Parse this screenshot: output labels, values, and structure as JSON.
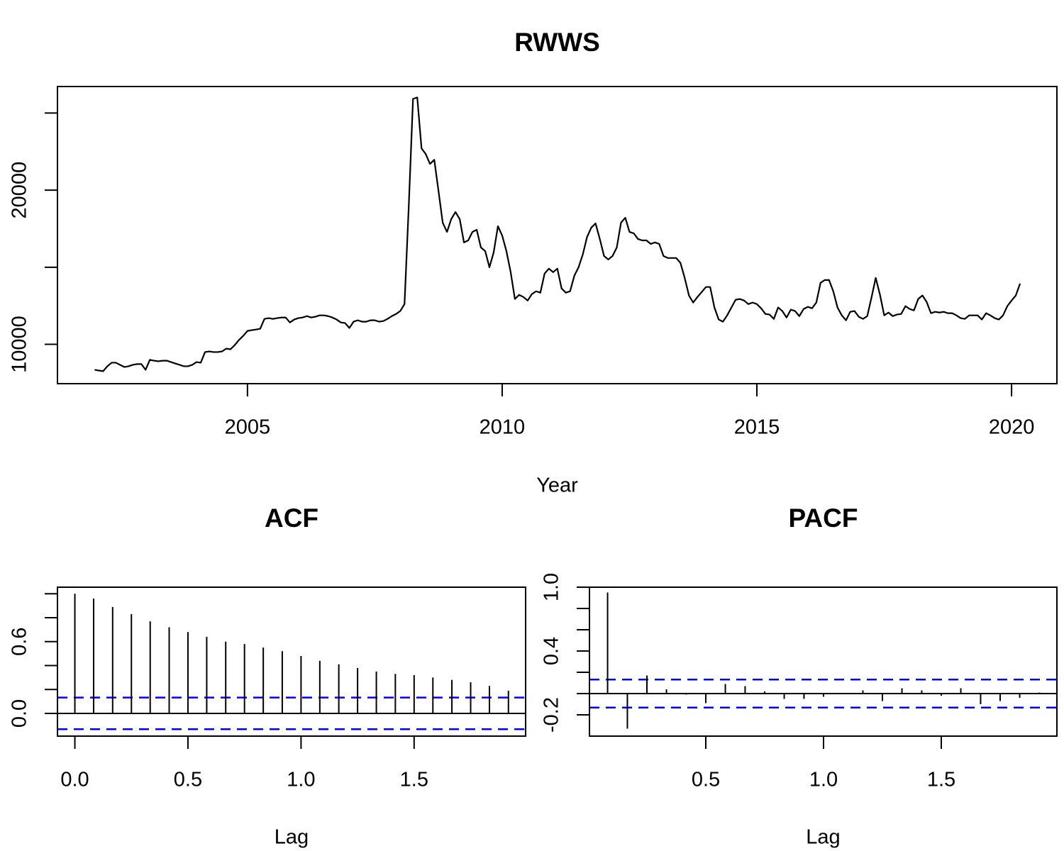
{
  "chart_data": [
    {
      "type": "line",
      "title": "RWWS",
      "xlabel": "Year",
      "color": "#000000",
      "x": [
        2002,
        2002.083,
        2002.167,
        2002.25,
        2002.333,
        2002.417,
        2002.5,
        2002.583,
        2002.667,
        2002.75,
        2002.833,
        2002.917,
        2003,
        2003.083,
        2003.167,
        2003.25,
        2003.333,
        2003.417,
        2003.5,
        2003.583,
        2003.667,
        2003.75,
        2003.833,
        2003.917,
        2004,
        2004.083,
        2004.167,
        2004.25,
        2004.333,
        2004.417,
        2004.5,
        2004.583,
        2004.667,
        2004.75,
        2004.833,
        2004.917,
        2005,
        2005.083,
        2005.167,
        2005.25,
        2005.333,
        2005.417,
        2005.5,
        2005.583,
        2005.667,
        2005.75,
        2005.833,
        2005.917,
        2006,
        2006.083,
        2006.167,
        2006.25,
        2006.333,
        2006.417,
        2006.5,
        2006.583,
        2006.667,
        2006.75,
        2006.833,
        2006.917,
        2007,
        2007.083,
        2007.167,
        2007.25,
        2007.333,
        2007.417,
        2007.5,
        2007.583,
        2007.667,
        2007.75,
        2007.833,
        2007.917,
        2008,
        2008.083,
        2008.167,
        2008.25,
        2008.333,
        2008.417,
        2008.5,
        2008.583,
        2008.667,
        2008.75,
        2008.833,
        2008.917,
        2009,
        2009.083,
        2009.167,
        2009.25,
        2009.333,
        2009.417,
        2009.5,
        2009.583,
        2009.667,
        2009.75,
        2009.833,
        2009.917,
        2010,
        2010.083,
        2010.167,
        2010.25,
        2010.333,
        2010.417,
        2010.5,
        2010.583,
        2010.667,
        2010.75,
        2010.833,
        2010.917,
        2011,
        2011.083,
        2011.167,
        2011.25,
        2011.333,
        2011.417,
        2011.5,
        2011.583,
        2011.667,
        2011.75,
        2011.833,
        2011.917,
        2012,
        2012.083,
        2012.167,
        2012.25,
        2012.333,
        2012.417,
        2012.5,
        2012.583,
        2012.667,
        2012.75,
        2012.833,
        2012.917,
        2013,
        2013.083,
        2013.167,
        2013.25,
        2013.333,
        2013.417,
        2013.5,
        2013.583,
        2013.667,
        2013.75,
        2013.833,
        2013.917,
        2014,
        2014.083,
        2014.167,
        2014.25,
        2014.333,
        2014.417,
        2014.5,
        2014.583,
        2014.667,
        2014.75,
        2014.833,
        2014.917,
        2015,
        2015.083,
        2015.167,
        2015.25,
        2015.333,
        2015.417,
        2015.5,
        2015.583,
        2015.667,
        2015.75,
        2015.833,
        2015.917,
        2016,
        2016.083,
        2016.167,
        2016.25,
        2016.333,
        2016.417,
        2016.5,
        2016.583,
        2016.667,
        2016.75,
        2016.833,
        2016.917,
        2017,
        2017.083,
        2017.167,
        2017.25,
        2017.333,
        2017.417,
        2017.5,
        2017.583,
        2017.667,
        2017.75,
        2017.833,
        2017.917,
        2018,
        2018.083,
        2018.167,
        2018.25,
        2018.333,
        2018.417,
        2018.5,
        2018.583,
        2018.667,
        2018.75,
        2018.833,
        2018.917,
        2019,
        2019.083,
        2019.167,
        2019.25,
        2019.333,
        2019.417,
        2019.5,
        2019.583,
        2019.667,
        2019.75,
        2019.833,
        2019.917,
        2020,
        2020.083,
        2020.167
      ],
      "values": [
        8350,
        8300,
        8260,
        8580,
        8810,
        8810,
        8670,
        8530,
        8580,
        8670,
        8720,
        8720,
        8350,
        8990,
        8940,
        8900,
        8940,
        8940,
        8850,
        8760,
        8670,
        8580,
        8580,
        8670,
        8850,
        8810,
        9500,
        9540,
        9500,
        9500,
        9540,
        9720,
        9680,
        9950,
        10280,
        10550,
        10870,
        10920,
        10960,
        11010,
        11650,
        11700,
        11650,
        11700,
        11740,
        11740,
        11420,
        11610,
        11700,
        11740,
        11830,
        11740,
        11790,
        11880,
        11880,
        11830,
        11740,
        11610,
        11420,
        11380,
        11060,
        11470,
        11560,
        11470,
        11470,
        11560,
        11560,
        11470,
        11510,
        11650,
        11830,
        11970,
        12160,
        12610,
        19000,
        25920,
        26010,
        22710,
        22340,
        21700,
        21970,
        19950,
        17890,
        17290,
        18120,
        18580,
        18120,
        16610,
        16740,
        17290,
        17430,
        16280,
        16050,
        15000,
        15960,
        17660,
        17060,
        16050,
        14680,
        12940,
        13210,
        13070,
        12840,
        13260,
        13440,
        13350,
        14590,
        14910,
        14680,
        14910,
        13620,
        13350,
        13440,
        14450,
        15000,
        15830,
        16970,
        17570,
        17840,
        16830,
        15730,
        15500,
        15730,
        16280,
        17890,
        18210,
        17290,
        17200,
        16830,
        16740,
        16740,
        16510,
        16610,
        16510,
        15730,
        15600,
        15600,
        15600,
        15280,
        14310,
        13170,
        12710,
        13070,
        13390,
        13720,
        13720,
        12390,
        11610,
        11470,
        11880,
        12390,
        12890,
        12940,
        12840,
        12610,
        12710,
        12610,
        12340,
        11970,
        11930,
        11650,
        12390,
        12160,
        11740,
        12250,
        12160,
        11830,
        12290,
        12430,
        12340,
        12710,
        13990,
        14170,
        14170,
        13440,
        12390,
        11880,
        11560,
        12110,
        12160,
        11790,
        11650,
        11830,
        13030,
        14310,
        13210,
        11880,
        12060,
        11830,
        11930,
        11970,
        12480,
        12290,
        12200,
        12940,
        13170,
        12750,
        12020,
        12110,
        12060,
        12110,
        12020,
        12020,
        11880,
        11700,
        11650,
        11880,
        11880,
        11880,
        11610,
        12020,
        11880,
        11700,
        11610,
        11880,
        12480,
        12840,
        13170,
        13940
      ],
      "xlim": [
        2001.27,
        2020.89
      ],
      "ylim": [
        7450,
        26720
      ],
      "xticks": [
        2005,
        2010,
        2015,
        2020
      ],
      "yticks": [
        10000,
        20000
      ],
      "yticks_minor": [
        15000,
        25000
      ]
    },
    {
      "type": "stem",
      "title": "ACF",
      "xlabel": "Lag",
      "color": "#000000",
      "x": [
        0,
        0.083,
        0.167,
        0.25,
        0.333,
        0.417,
        0.5,
        0.583,
        0.667,
        0.75,
        0.833,
        0.917,
        1,
        1.083,
        1.167,
        1.25,
        1.333,
        1.417,
        1.5,
        1.583,
        1.667,
        1.75,
        1.833,
        1.917
      ],
      "values": [
        1.0,
        0.96,
        0.89,
        0.83,
        0.77,
        0.72,
        0.68,
        0.64,
        0.6,
        0.58,
        0.55,
        0.52,
        0.48,
        0.44,
        0.41,
        0.38,
        0.35,
        0.33,
        0.32,
        0.3,
        0.28,
        0.26,
        0.23,
        0.19
      ],
      "xlim": [
        -0.077,
        1.993
      ],
      "ylim": [
        -0.19,
        1.055
      ],
      "xticks": [
        {
          "value": 0,
          "label": "0.0"
        },
        0.5,
        {
          "value": 1,
          "label": "1.0"
        },
        1.5
      ],
      "yticks": [
        {
          "value": 0,
          "label": "0.0"
        },
        0.6
      ],
      "yticks_minor": [
        0.2,
        0.4,
        0.8,
        1
      ],
      "conf_limits": [
        0.132,
        -0.132
      ],
      "conf_color": "#0000ff"
    },
    {
      "type": "stem",
      "title": "PACF",
      "xlabel": "Lag",
      "color": "#000000",
      "x": [
        0.083,
        0.167,
        0.25,
        0.333,
        0.417,
        0.5,
        0.583,
        0.667,
        0.75,
        0.833,
        0.917,
        1,
        1.083,
        1.167,
        1.25,
        1.333,
        1.417,
        1.5,
        1.583,
        1.667,
        1.75,
        1.833,
        1.917
      ],
      "values": [
        0.95,
        -0.33,
        0.17,
        0.04,
        -0.01,
        -0.09,
        0.09,
        0.07,
        0.02,
        -0.05,
        -0.05,
        -0.03,
        0.0,
        0.03,
        -0.07,
        0.05,
        0.03,
        -0.02,
        0.05,
        -0.1,
        -0.07,
        -0.04,
        0.01
      ],
      "xlim": [
        0.006,
        1.991
      ],
      "ylim": [
        -0.4,
        1.0
      ],
      "xticks": [
        0.5,
        {
          "value": 1,
          "label": "1.0"
        },
        1.5
      ],
      "yticks": [
        -0.2,
        0.4,
        {
          "value": 1,
          "label": "1.0"
        }
      ],
      "yticks_minor": [
        0,
        0.2,
        0.6,
        0.8
      ],
      "conf_limits": [
        0.132,
        -0.132
      ],
      "conf_color": "#0000ff"
    }
  ]
}
